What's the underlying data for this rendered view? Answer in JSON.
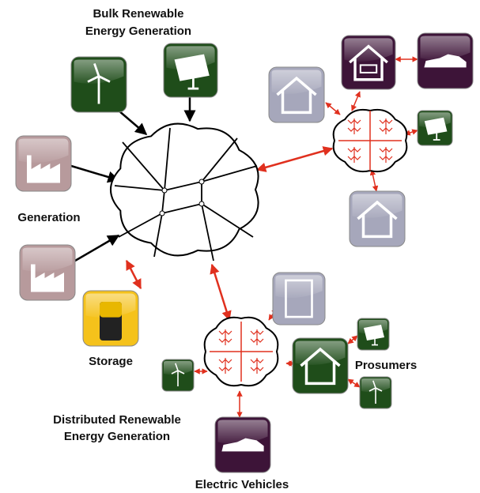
{
  "labels": {
    "bulk_generation": [
      "Bulk Renewable",
      "Energy Generation"
    ],
    "generation": "Generation",
    "storage": "Storage",
    "prosumers": "Prosumers",
    "distributed_generation": [
      "Distributed Renewable",
      "Energy Generation"
    ],
    "electric_vehicles": "Electric Vehicles"
  }
}
